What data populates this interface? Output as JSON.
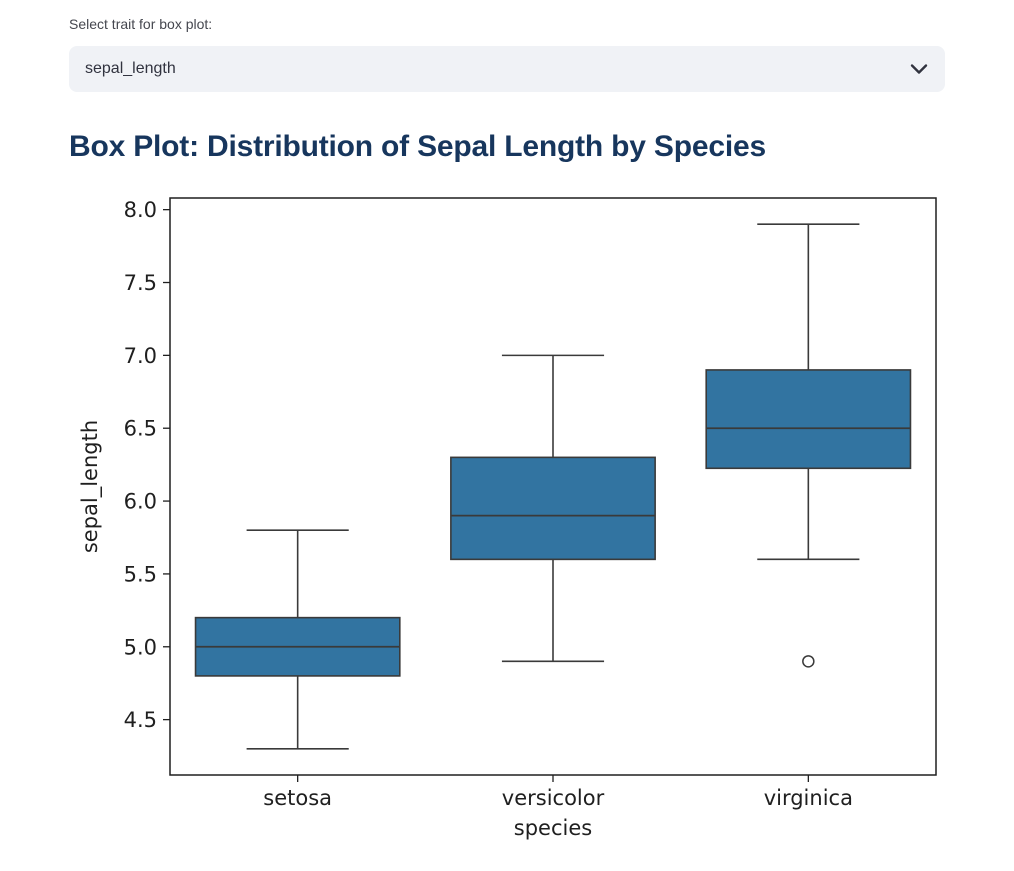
{
  "select_widget": {
    "label": "Select trait for box plot:",
    "value": "sepal_length"
  },
  "heading": "Box Plot: Distribution of Sepal Length by Species",
  "colors": {
    "heading_text": "#17365D",
    "select_background": "#F0F2F6",
    "select_text": "#31333F"
  },
  "chart_data": {
    "type": "boxplot",
    "title": "",
    "xlabel": "species",
    "ylabel": "sepal_length",
    "categories": [
      "setosa",
      "versicolor",
      "virginica"
    ],
    "yticks": [
      4.5,
      5.0,
      5.5,
      6.0,
      6.5,
      7.0,
      7.5,
      8.0
    ],
    "ylim": [
      4.12,
      8.08
    ],
    "grid": false,
    "legend": "none",
    "box_color": "#3274A1",
    "line_color": "#3A3A3A",
    "series": [
      {
        "name": "setosa",
        "whisker_low": 4.3,
        "q1": 4.8,
        "median": 5.0,
        "q3": 5.2,
        "whisker_high": 5.8,
        "outliers": []
      },
      {
        "name": "versicolor",
        "whisker_low": 4.9,
        "q1": 5.6,
        "median": 5.9,
        "q3": 6.3,
        "whisker_high": 7.0,
        "outliers": []
      },
      {
        "name": "virginica",
        "whisker_low": 5.6,
        "q1": 6.225,
        "median": 6.5,
        "q3": 6.9,
        "whisker_high": 7.9,
        "outliers": [
          4.9
        ]
      }
    ]
  }
}
